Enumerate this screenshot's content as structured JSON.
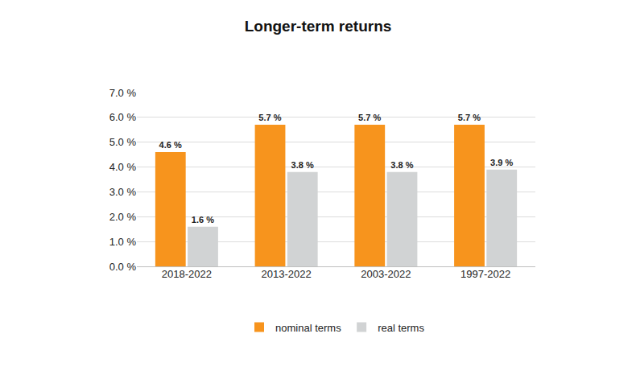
{
  "chart_data": {
    "type": "bar",
    "title": "Longer-term returns",
    "categories": [
      "2018-2022",
      "2013-2022",
      "2003-2022",
      "1997-2022"
    ],
    "series": [
      {
        "name": "nominal terms",
        "color": "#f7941d",
        "values": [
          4.6,
          5.7,
          5.7,
          5.7
        ],
        "value_labels": [
          "4.6 %",
          "5.7 %",
          "5.7 %",
          "5.7 %"
        ]
      },
      {
        "name": "real terms",
        "color": "#d1d3d4",
        "values": [
          1.6,
          3.8,
          3.8,
          3.9
        ],
        "value_labels": [
          "1.6 %",
          "3.8 %",
          "3.8 %",
          "3.9 %"
        ]
      }
    ],
    "ylim": [
      0,
      7
    ],
    "yticks": [
      {
        "value": 0,
        "label": "0.0 %"
      },
      {
        "value": 1,
        "label": "1.0 %"
      },
      {
        "value": 2,
        "label": "2.0 %"
      },
      {
        "value": 3,
        "label": "3.0 %"
      },
      {
        "value": 4,
        "label": "4.0 %"
      },
      {
        "value": 5,
        "label": "5.0 %"
      },
      {
        "value": 6,
        "label": "6.0 %"
      },
      {
        "value": 7,
        "label": "7.0 %"
      }
    ],
    "grid": true,
    "legend": "bottom",
    "data_labels": true
  }
}
